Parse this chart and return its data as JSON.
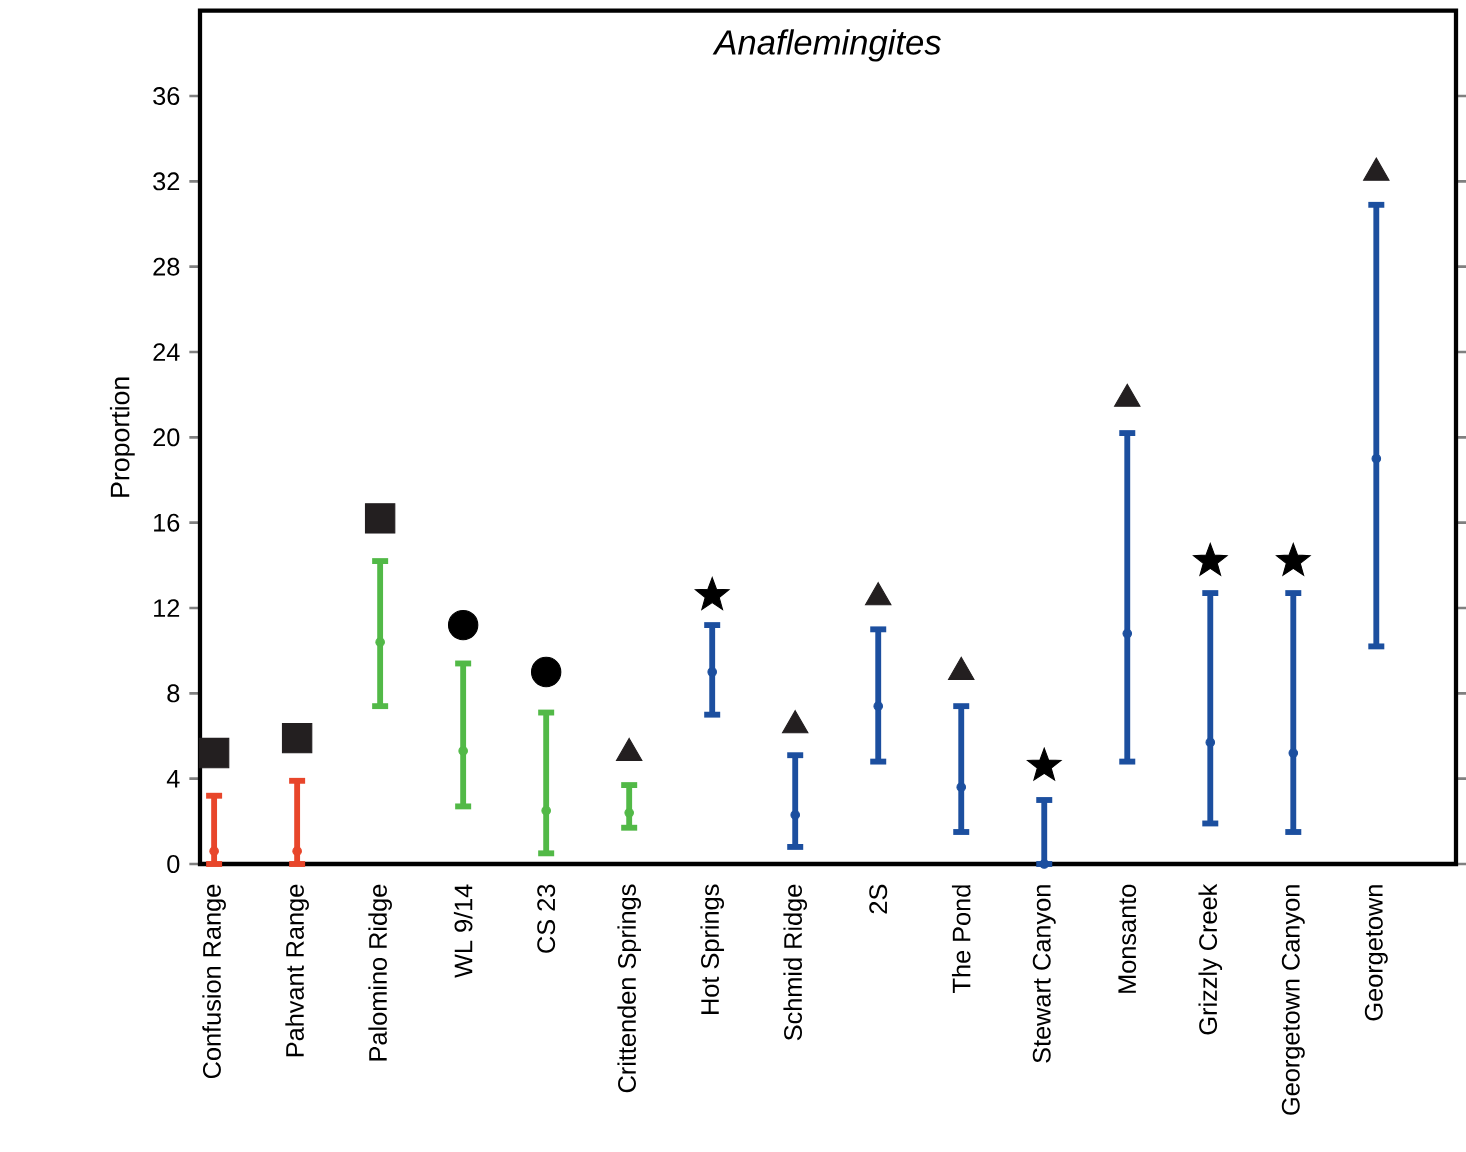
{
  "chart_data": {
    "type": "scatter",
    "title": "Anaflemingites",
    "ylabel": "Proportion",
    "categories": [
      "Confusion Range",
      "Pahvant Range",
      "Palomino Ridge",
      "WL 9/14",
      "CS 23",
      "Crittenden Springs",
      "Hot Springs",
      "Schmid Ridge",
      "2S",
      "The Pond",
      "Stewart Canyon",
      "Monsanto",
      "Grizzly Creek",
      "Georgetown Canyon",
      "Georgetown"
    ],
    "ylim": [
      0,
      40
    ],
    "yticks": [
      0,
      4,
      8,
      12,
      16,
      20,
      24,
      28,
      32,
      36
    ],
    "series": [
      {
        "color": "#e8462b",
        "marker": "circle",
        "values": [
          0.6,
          0.6,
          null,
          null,
          null,
          null,
          null,
          null,
          null,
          null,
          null,
          null,
          null,
          null,
          null
        ],
        "errors": [
          [
            0,
            3.2
          ],
          [
            0,
            3.9
          ],
          null,
          null,
          null,
          null,
          null,
          null,
          null,
          null,
          null,
          null,
          null,
          null,
          null
        ]
      },
      {
        "color": "#52b947",
        "marker": "circle",
        "values": [
          null,
          null,
          10.4,
          5.3,
          2.5,
          2.4,
          null,
          null,
          null,
          null,
          null,
          null,
          null,
          null,
          null
        ],
        "errors": [
          null,
          null,
          [
            7.4,
            14.2
          ],
          [
            2.7,
            9.4
          ],
          [
            0.5,
            7.1
          ],
          [
            1.7,
            3.7
          ],
          null,
          null,
          null,
          null,
          null,
          null,
          null,
          null,
          null
        ]
      },
      {
        "color": "#1c4f9f",
        "marker": "circle",
        "values": [
          null,
          null,
          null,
          null,
          null,
          null,
          9.0,
          2.3,
          7.4,
          3.6,
          0,
          10.8,
          5.7,
          5.2,
          19.0
        ],
        "errors": [
          null,
          null,
          null,
          null,
          null,
          null,
          [
            7.0,
            11.2
          ],
          [
            0.8,
            5.1
          ],
          [
            4.8,
            11.0
          ],
          [
            1.5,
            7.4
          ],
          [
            0,
            3.0
          ],
          [
            4.8,
            20.2
          ],
          [
            1.9,
            12.7
          ],
          [
            1.5,
            12.7
          ],
          [
            10.2,
            30.9
          ]
        ]
      },
      {
        "color": "#231f20",
        "marker": "square",
        "values": [
          5.2,
          5.9,
          16.2,
          null,
          null,
          null,
          null,
          null,
          null,
          null,
          null,
          null,
          null,
          null,
          null
        ]
      },
      {
        "color": "#000000",
        "marker": "circle",
        "values": [
          null,
          null,
          null,
          11.2,
          9.0,
          null,
          null,
          null,
          null,
          null,
          null,
          null,
          null,
          null,
          null
        ]
      },
      {
        "color": "#231f20",
        "marker": "triangle",
        "values": [
          null,
          null,
          null,
          null,
          null,
          5.2,
          null,
          6.5,
          12.5,
          9.0,
          null,
          21.8,
          null,
          null,
          32.4
        ]
      },
      {
        "color": "#000000",
        "marker": "star",
        "values": [
          null,
          null,
          null,
          null,
          null,
          null,
          12.6,
          null,
          null,
          null,
          4.6,
          null,
          14.2,
          14.2,
          null
        ]
      }
    ]
  }
}
